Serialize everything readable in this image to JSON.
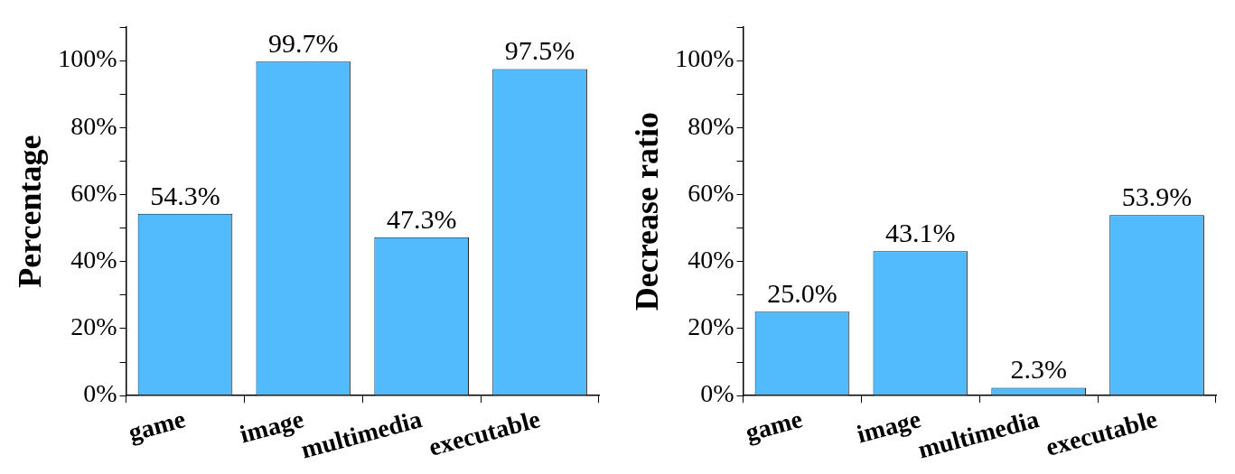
{
  "chart_data": [
    {
      "type": "bar",
      "ylabel": "Percentage",
      "categories": [
        "game",
        "image",
        "multimedia",
        "executable"
      ],
      "values": [
        54.3,
        99.7,
        47.3,
        97.5
      ],
      "value_labels": [
        "54.3%",
        "99.7%",
        "47.3%",
        "97.5%"
      ],
      "color": "#52bbfd",
      "ylim": [
        0,
        110
      ],
      "yticks": [
        {
          "value": 0,
          "label": "0%"
        },
        {
          "value": 10,
          "label": null
        },
        {
          "value": 20,
          "label": "20%"
        },
        {
          "value": 30,
          "label": null
        },
        {
          "value": 40,
          "label": "40%"
        },
        {
          "value": 50,
          "label": null
        },
        {
          "value": 60,
          "label": "60%"
        },
        {
          "value": 70,
          "label": null
        },
        {
          "value": 80,
          "label": "80%"
        },
        {
          "value": 90,
          "label": null
        },
        {
          "value": 100,
          "label": "100%"
        },
        {
          "value": 110,
          "label": null
        }
      ]
    },
    {
      "type": "bar",
      "ylabel": "Decrease ratio",
      "categories": [
        "game",
        "image",
        "multimedia",
        "executable"
      ],
      "values": [
        25.0,
        43.1,
        2.3,
        53.9
      ],
      "value_labels": [
        "25.0%",
        "43.1%",
        "2.3%",
        "53.9%"
      ],
      "color": "#52bbfd",
      "ylim": [
        0,
        110
      ],
      "yticks": [
        {
          "value": 0,
          "label": "0%"
        },
        {
          "value": 10,
          "label": null
        },
        {
          "value": 20,
          "label": "20%"
        },
        {
          "value": 30,
          "label": null
        },
        {
          "value": 40,
          "label": "40%"
        },
        {
          "value": 50,
          "label": null
        },
        {
          "value": 60,
          "label": "60%"
        },
        {
          "value": 70,
          "label": null
        },
        {
          "value": 80,
          "label": "80%"
        },
        {
          "value": 90,
          "label": null
        },
        {
          "value": 100,
          "label": "100%"
        },
        {
          "value": 110,
          "label": null
        }
      ]
    }
  ]
}
